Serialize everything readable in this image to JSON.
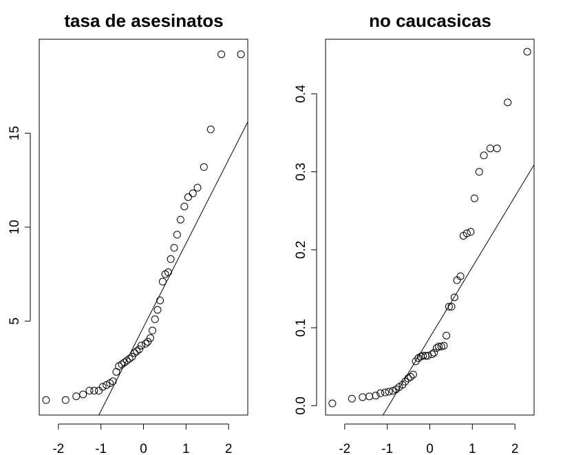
{
  "chart_data": [
    {
      "type": "scatter",
      "title": "tasa de asesinatos",
      "xlabel": "",
      "ylabel": "",
      "xlim": [
        -2.45,
        2.45
      ],
      "ylim": [
        0.0,
        20.0
      ],
      "x_ticks": [
        -2,
        -1,
        0,
        1,
        2
      ],
      "x_tick_labels": [
        "-2",
        "-1",
        "0",
        "1",
        "2"
      ],
      "y_ticks": [
        5,
        10,
        15
      ],
      "y_tick_labels": [
        "5",
        "10",
        "15"
      ],
      "grid": false,
      "reference_line": {
        "x1": -1.05,
        "y1": 0.0,
        "x2": 2.45,
        "y2": 15.6
      },
      "points": {
        "x": [
          -2.29,
          -1.83,
          -1.58,
          -1.42,
          -1.27,
          -1.16,
          -1.05,
          -0.96,
          -0.87,
          -0.79,
          -0.72,
          -0.64,
          -0.58,
          -0.51,
          -0.45,
          -0.39,
          -0.33,
          -0.27,
          -0.21,
          -0.16,
          -0.1,
          -0.05,
          0.05,
          0.1,
          0.16,
          0.21,
          0.27,
          0.33,
          0.39,
          0.45,
          0.51,
          0.58,
          0.64,
          0.72,
          0.79,
          0.87,
          0.96,
          1.05,
          1.16,
          1.27,
          1.42,
          1.58,
          1.83,
          2.29
        ],
        "y": [
          0.8,
          0.8,
          1.0,
          1.1,
          1.3,
          1.3,
          1.3,
          1.5,
          1.6,
          1.7,
          1.8,
          2.3,
          2.6,
          2.7,
          2.8,
          2.9,
          3.0,
          3.1,
          3.3,
          3.4,
          3.5,
          3.7,
          3.8,
          3.9,
          4.1,
          4.5,
          5.1,
          5.6,
          6.1,
          7.1,
          7.5,
          7.6,
          8.3,
          8.9,
          9.6,
          10.4,
          11.1,
          11.6,
          11.8,
          12.1,
          13.2,
          15.2,
          19.2,
          19.2
        ]
      }
    },
    {
      "type": "scatter",
      "title": "no caucasicas",
      "xlabel": "",
      "ylabel": "",
      "xlim": [
        -2.45,
        2.45
      ],
      "ylim": [
        -0.012,
        0.47
      ],
      "x_ticks": [
        -2,
        -1,
        0,
        1,
        2
      ],
      "x_tick_labels": [
        "-2",
        "-1",
        "0",
        "1",
        "2"
      ],
      "y_ticks": [
        0.0,
        0.1,
        0.2,
        0.3,
        0.4
      ],
      "y_tick_labels": [
        "0.0",
        "0.1",
        "0.2",
        "0.3",
        "0.4"
      ],
      "grid": false,
      "reference_line": {
        "x1": -1.1,
        "y1": -0.012,
        "x2": 2.45,
        "y2": 0.309
      },
      "points": {
        "x": [
          -2.29,
          -1.83,
          -1.58,
          -1.42,
          -1.27,
          -1.16,
          -1.05,
          -0.96,
          -0.87,
          -0.79,
          -0.72,
          -0.64,
          -0.58,
          -0.51,
          -0.45,
          -0.39,
          -0.33,
          -0.27,
          -0.21,
          -0.16,
          -0.1,
          -0.05,
          0.05,
          0.1,
          0.16,
          0.21,
          0.27,
          0.33,
          0.39,
          0.45,
          0.51,
          0.58,
          0.64,
          0.72,
          0.79,
          0.87,
          0.96,
          1.05,
          1.16,
          1.27,
          1.42,
          1.58,
          1.83,
          2.29
        ],
        "y": [
          0.003,
          0.009,
          0.011,
          0.012,
          0.013,
          0.016,
          0.017,
          0.018,
          0.019,
          0.021,
          0.024,
          0.027,
          0.031,
          0.035,
          0.037,
          0.04,
          0.057,
          0.061,
          0.063,
          0.064,
          0.064,
          0.064,
          0.066,
          0.068,
          0.074,
          0.076,
          0.076,
          0.077,
          0.09,
          0.127,
          0.127,
          0.139,
          0.161,
          0.166,
          0.218,
          0.221,
          0.223,
          0.266,
          0.3,
          0.321,
          0.33,
          0.33,
          0.389,
          0.454
        ]
      }
    }
  ]
}
